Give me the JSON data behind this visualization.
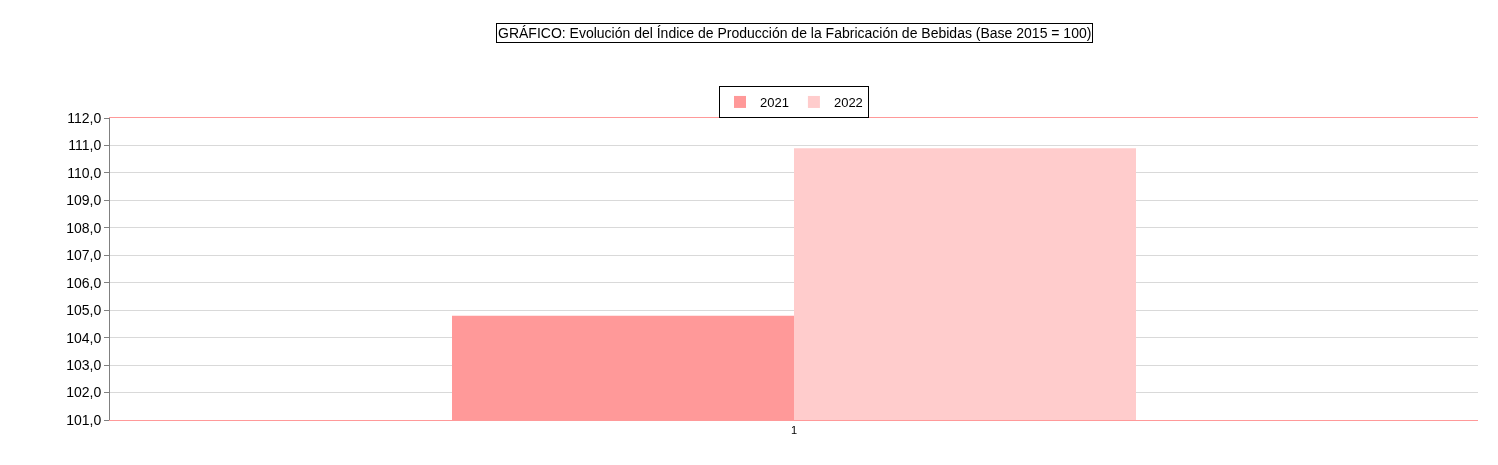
{
  "chart_data": {
    "type": "bar",
    "title": "GRÁFICO: Evolución del Índice de Producción de la Fabricación de Bebidas (Base 2015 = 100)",
    "categories": [
      "1"
    ],
    "series": [
      {
        "name": "2021",
        "color": "#ff9999",
        "values": [
          104.8
        ]
      },
      {
        "name": "2022",
        "color": "#ffcccc",
        "values": [
          110.9
        ]
      }
    ],
    "ylim": [
      101,
      112
    ],
    "yticks": [
      {
        "value": 101,
        "label": "101,0"
      },
      {
        "value": 102,
        "label": "102,0"
      },
      {
        "value": 103,
        "label": "103,0"
      },
      {
        "value": 104,
        "label": "104,0"
      },
      {
        "value": 105,
        "label": "105,0"
      },
      {
        "value": 106,
        "label": "106,0"
      },
      {
        "value": 107,
        "label": "107,0"
      },
      {
        "value": 108,
        "label": "108,0"
      },
      {
        "value": 109,
        "label": "109,0"
      },
      {
        "value": 110,
        "label": "110,0"
      },
      {
        "value": 111,
        "label": "111,0"
      },
      {
        "value": 112,
        "label": "112,0"
      }
    ],
    "grid": "y",
    "legend": "top"
  }
}
